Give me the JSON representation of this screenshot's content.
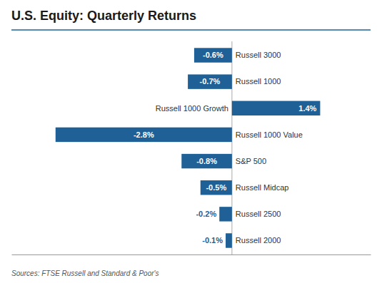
{
  "chart_data": {
    "type": "bar",
    "title": "U.S. Equity: Quarterly Returns",
    "orientation": "horizontal",
    "categories": [
      "Russell 3000",
      "Russell 1000",
      "Russell 1000 Growth",
      "Russell 1000 Value",
      "S&P 500",
      "Russell Midcap",
      "Russell 2500",
      "Russell 2000"
    ],
    "values": [
      -0.6,
      -0.7,
      1.4,
      -2.8,
      -0.8,
      -0.5,
      -0.2,
      -0.1
    ],
    "value_labels": [
      "-0.6%",
      "-0.7%",
      "1.4%",
      "-2.8%",
      "-0.8%",
      "-0.5%",
      "-0.2%",
      "-0.1%"
    ],
    "data_labels": true,
    "color": "#1f6096",
    "xlim": [
      -3.5,
      2.2
    ],
    "tick_labels": false,
    "grid": false,
    "annotations": [
      "Sources: FTSE Russell and Standard & Poor's"
    ]
  }
}
